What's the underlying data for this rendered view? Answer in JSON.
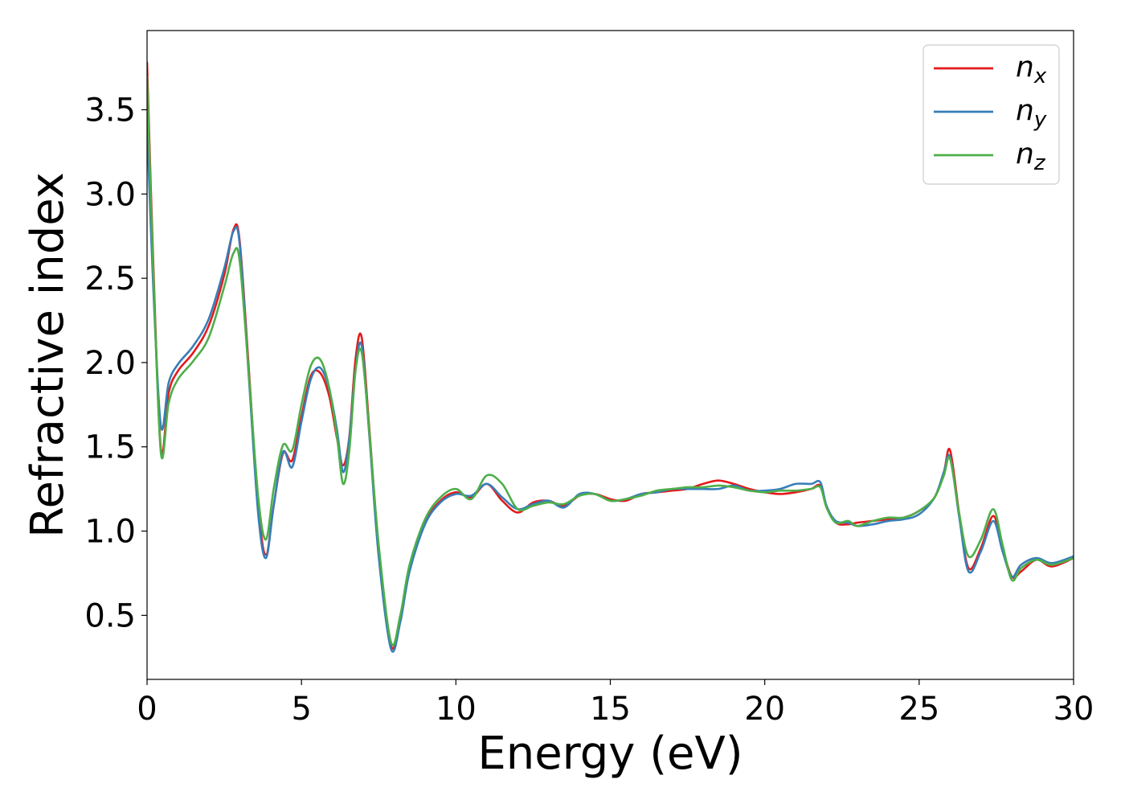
{
  "chart_data": {
    "type": "line",
    "xlabel": "Energy (eV)",
    "ylabel": "Refractive index",
    "xlim": [
      0,
      30
    ],
    "ylim": [
      0.12,
      3.97
    ],
    "xticks": [
      0,
      5,
      10,
      15,
      20,
      25,
      30
    ],
    "yticks": [
      0.5,
      1.0,
      1.5,
      2.0,
      2.5,
      3.0,
      3.5
    ],
    "xtick_labels": [
      "0",
      "5",
      "10",
      "15",
      "20",
      "25",
      "30"
    ],
    "ytick_labels": [
      "0.5",
      "1.0",
      "1.5",
      "2.0",
      "2.5",
      "3.0",
      "3.5"
    ],
    "grid": false,
    "legend_position": "top-right",
    "series": [
      {
        "name": "n",
        "subscript": "x",
        "color": "#e41a1c",
        "x": [
          0,
          0.2,
          0.45,
          0.7,
          1,
          1.5,
          2,
          2.5,
          2.8,
          3,
          3.3,
          3.6,
          3.85,
          4.1,
          4.4,
          4.7,
          5,
          5.3,
          5.6,
          5.9,
          6.15,
          6.35,
          6.55,
          6.75,
          6.95,
          7.2,
          7.5,
          7.9,
          8.2,
          8.5,
          9,
          9.5,
          10,
          10.5,
          11,
          11.5,
          12,
          12.5,
          13,
          13.5,
          14,
          14.5,
          15,
          15.5,
          16,
          16.5,
          17,
          17.5,
          18,
          18.5,
          19,
          19.5,
          20,
          20.5,
          21,
          21.5,
          21.8,
          22,
          22.3,
          22.7,
          23,
          23.5,
          24,
          24.5,
          25,
          25.5,
          25.8,
          26,
          26.3,
          26.6,
          27,
          27.4,
          27.7,
          28,
          28.3,
          28.8,
          29.3,
          30
        ],
        "y": [
          3.78,
          2.6,
          1.48,
          1.82,
          1.95,
          2.06,
          2.22,
          2.52,
          2.79,
          2.72,
          1.95,
          1.15,
          0.86,
          1.15,
          1.46,
          1.42,
          1.68,
          1.92,
          1.94,
          1.8,
          1.55,
          1.39,
          1.56,
          2.02,
          2.15,
          1.6,
          0.9,
          0.32,
          0.48,
          0.78,
          1.05,
          1.18,
          1.23,
          1.2,
          1.28,
          1.18,
          1.11,
          1.17,
          1.18,
          1.15,
          1.21,
          1.22,
          1.19,
          1.18,
          1.22,
          1.23,
          1.24,
          1.25,
          1.28,
          1.3,
          1.28,
          1.25,
          1.23,
          1.22,
          1.23,
          1.25,
          1.27,
          1.15,
          1.05,
          1.04,
          1.05,
          1.06,
          1.07,
          1.08,
          1.12,
          1.2,
          1.35,
          1.48,
          1.1,
          0.78,
          0.9,
          1.09,
          0.9,
          0.73,
          0.76,
          0.83,
          0.79,
          0.84
        ]
      },
      {
        "name": "n",
        "subscript": "y",
        "color": "#377eb8",
        "x": [
          0,
          0.2,
          0.45,
          0.7,
          1,
          1.5,
          2,
          2.5,
          2.8,
          3,
          3.3,
          3.6,
          3.85,
          4.1,
          4.4,
          4.7,
          5,
          5.3,
          5.6,
          5.9,
          6.15,
          6.35,
          6.55,
          6.75,
          6.95,
          7.2,
          7.5,
          7.9,
          8.2,
          8.5,
          9,
          9.5,
          10,
          10.5,
          11,
          11.5,
          12,
          12.5,
          13,
          13.5,
          14,
          14.5,
          15,
          15.5,
          16,
          16.5,
          17,
          17.5,
          18,
          18.5,
          19,
          19.5,
          20,
          20.5,
          21,
          21.5,
          21.8,
          22,
          22.3,
          22.7,
          23,
          23.5,
          24,
          24.5,
          25,
          25.5,
          25.8,
          26,
          26.3,
          26.6,
          27,
          27.4,
          27.7,
          28,
          28.3,
          28.8,
          29.3,
          30
        ],
        "y": [
          3.42,
          2.45,
          1.62,
          1.88,
          1.99,
          2.1,
          2.26,
          2.56,
          2.78,
          2.7,
          1.9,
          1.1,
          0.84,
          1.15,
          1.47,
          1.38,
          1.65,
          1.9,
          1.97,
          1.84,
          1.6,
          1.35,
          1.55,
          1.96,
          2.1,
          1.56,
          0.85,
          0.3,
          0.46,
          0.76,
          1.04,
          1.17,
          1.22,
          1.21,
          1.28,
          1.2,
          1.13,
          1.16,
          1.18,
          1.14,
          1.22,
          1.22,
          1.18,
          1.19,
          1.22,
          1.23,
          1.25,
          1.25,
          1.25,
          1.25,
          1.27,
          1.24,
          1.24,
          1.25,
          1.28,
          1.28,
          1.29,
          1.15,
          1.06,
          1.05,
          1.03,
          1.04,
          1.06,
          1.07,
          1.1,
          1.2,
          1.35,
          1.44,
          1.08,
          0.76,
          0.88,
          1.06,
          0.88,
          0.73,
          0.8,
          0.84,
          0.81,
          0.85
        ]
      },
      {
        "name": "n",
        "subscript": "z",
        "color": "#4daf4a",
        "x": [
          0,
          0.2,
          0.45,
          0.7,
          1,
          1.5,
          2,
          2.5,
          2.8,
          3,
          3.3,
          3.6,
          3.85,
          4.1,
          4.4,
          4.7,
          5,
          5.3,
          5.6,
          5.9,
          6.15,
          6.35,
          6.55,
          6.75,
          6.95,
          7.2,
          7.5,
          7.9,
          8.2,
          8.5,
          9,
          9.5,
          10,
          10.5,
          11,
          11.5,
          12,
          12.5,
          13,
          13.5,
          14,
          14.5,
          15,
          15.5,
          16,
          16.5,
          17,
          17.5,
          18,
          18.5,
          19,
          19.5,
          20,
          20.5,
          21,
          21.5,
          21.8,
          22,
          22.3,
          22.7,
          23,
          23.5,
          24,
          24.5,
          25,
          25.5,
          25.8,
          26,
          26.3,
          26.6,
          27,
          27.4,
          27.7,
          28,
          28.3,
          28.8,
          29.3,
          30
        ],
        "y": [
          3.7,
          2.55,
          1.46,
          1.76,
          1.9,
          2.01,
          2.15,
          2.45,
          2.65,
          2.6,
          1.92,
          1.2,
          0.95,
          1.25,
          1.51,
          1.48,
          1.75,
          1.98,
          2.02,
          1.85,
          1.56,
          1.28,
          1.48,
          1.95,
          2.06,
          1.58,
          0.92,
          0.34,
          0.5,
          0.8,
          1.07,
          1.2,
          1.25,
          1.19,
          1.33,
          1.28,
          1.13,
          1.15,
          1.17,
          1.16,
          1.21,
          1.22,
          1.18,
          1.19,
          1.21,
          1.24,
          1.25,
          1.26,
          1.26,
          1.27,
          1.26,
          1.24,
          1.23,
          1.24,
          1.24,
          1.25,
          1.26,
          1.14,
          1.05,
          1.06,
          1.03,
          1.06,
          1.08,
          1.08,
          1.12,
          1.2,
          1.33,
          1.43,
          1.1,
          0.85,
          0.95,
          1.13,
          0.92,
          0.71,
          0.78,
          0.83,
          0.8,
          0.84
        ]
      }
    ]
  }
}
